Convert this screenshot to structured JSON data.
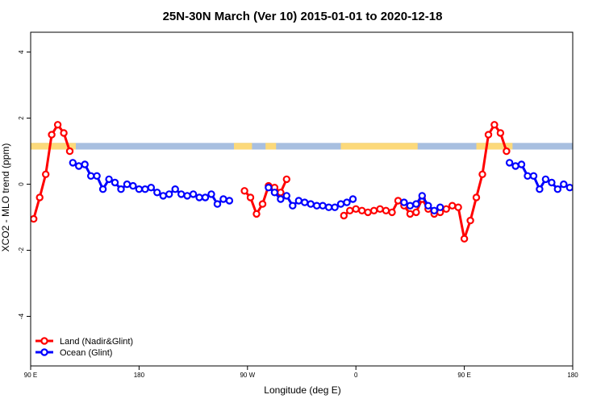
{
  "chart_data": {
    "type": "line",
    "title": "25N-30N March (Ver 10)   2015-01-01 to 2020-12-18",
    "xlabel": "Longitude (deg E)",
    "ylabel": "XCO2 - MLO trend (ppm)",
    "xlim": [
      90,
      450
    ],
    "ylim": [
      -5.5,
      4.6
    ],
    "x_ticks": [
      {
        "value": 90,
        "label": "90 E"
      },
      {
        "value": 162,
        "label": "180"
      },
      {
        "value": 234,
        "label": "90 W"
      },
      {
        "value": 306,
        "label": "0"
      },
      {
        "value": 378,
        "label": "90 E"
      },
      {
        "value": 450,
        "label": "180"
      }
    ],
    "y_ticks": [
      {
        "value": -4,
        "label": "-4"
      },
      {
        "value": -2,
        "label": "-2"
      },
      {
        "value": 0,
        "label": "0"
      },
      {
        "value": 2,
        "label": "2"
      },
      {
        "value": 4,
        "label": "4"
      }
    ],
    "grid": false,
    "legend_position": "bottom-left",
    "series": [
      {
        "name": "Land (Nadir&Glint)",
        "color": "#ff0000",
        "segments": [
          [
            [
              92,
              -1.05
            ],
            [
              96,
              -0.4
            ],
            [
              100,
              0.3
            ],
            [
              104,
              1.5
            ],
            [
              108,
              1.8
            ],
            [
              112,
              1.55
            ],
            [
              116,
              1.0
            ]
          ],
          [
            [
              232,
              -0.2
            ],
            [
              236,
              -0.4
            ],
            [
              240,
              -0.9
            ],
            [
              244,
              -0.6
            ],
            [
              248,
              -0.05
            ],
            [
              252,
              -0.1
            ],
            [
              256,
              -0.25
            ],
            [
              260,
              0.15
            ]
          ],
          [
            [
              298,
              -0.95
            ],
            [
              302,
              -0.8
            ],
            [
              306,
              -0.75
            ],
            [
              310,
              -0.8
            ],
            [
              314,
              -0.85
            ],
            [
              318,
              -0.8
            ],
            [
              322,
              -0.75
            ],
            [
              326,
              -0.8
            ],
            [
              330,
              -0.85
            ],
            [
              334,
              -0.5
            ],
            [
              338,
              -0.65
            ],
            [
              342,
              -0.9
            ],
            [
              346,
              -0.85
            ],
            [
              350,
              -0.45
            ],
            [
              354,
              -0.75
            ],
            [
              358,
              -0.9
            ],
            [
              362,
              -0.85
            ],
            [
              366,
              -0.75
            ],
            [
              370,
              -0.65
            ],
            [
              374,
              -0.7
            ],
            [
              378,
              -1.65
            ],
            [
              382,
              -1.1
            ],
            [
              386,
              -0.4
            ],
            [
              390,
              0.3
            ],
            [
              394,
              1.5
            ],
            [
              398,
              1.8
            ],
            [
              402,
              1.55
            ],
            [
              406,
              1.0
            ]
          ]
        ]
      },
      {
        "name": "Ocean (Glint)",
        "color": "#0000ff",
        "segments": [
          [
            [
              118,
              0.65
            ],
            [
              122,
              0.55
            ],
            [
              126,
              0.6
            ],
            [
              130,
              0.25
            ],
            [
              134,
              0.25
            ],
            [
              138,
              -0.15
            ],
            [
              142,
              0.15
            ],
            [
              146,
              0.05
            ],
            [
              150,
              -0.15
            ],
            [
              154,
              0.0
            ],
            [
              158,
              -0.05
            ],
            [
              162,
              -0.15
            ],
            [
              166,
              -0.15
            ],
            [
              170,
              -0.1
            ],
            [
              174,
              -0.25
            ],
            [
              178,
              -0.35
            ],
            [
              182,
              -0.3
            ],
            [
              186,
              -0.15
            ],
            [
              190,
              -0.3
            ],
            [
              194,
              -0.35
            ],
            [
              198,
              -0.3
            ],
            [
              202,
              -0.4
            ],
            [
              206,
              -0.4
            ],
            [
              210,
              -0.3
            ],
            [
              214,
              -0.6
            ],
            [
              218,
              -0.45
            ],
            [
              222,
              -0.5
            ]
          ],
          [
            [
              248,
              -0.1
            ],
            [
              252,
              -0.25
            ],
            [
              256,
              -0.45
            ],
            [
              260,
              -0.35
            ],
            [
              264,
              -0.65
            ],
            [
              268,
              -0.5
            ],
            [
              272,
              -0.55
            ],
            [
              276,
              -0.6
            ],
            [
              280,
              -0.65
            ],
            [
              284,
              -0.65
            ],
            [
              288,
              -0.7
            ],
            [
              292,
              -0.7
            ],
            [
              296,
              -0.6
            ],
            [
              300,
              -0.55
            ],
            [
              304,
              -0.45
            ]
          ],
          [
            [
              338,
              -0.55
            ],
            [
              342,
              -0.65
            ],
            [
              346,
              -0.6
            ],
            [
              350,
              -0.35
            ],
            [
              354,
              -0.65
            ],
            [
              358,
              -0.8
            ],
            [
              362,
              -0.7
            ]
          ],
          [
            [
              408,
              0.65
            ],
            [
              412,
              0.55
            ],
            [
              416,
              0.6
            ],
            [
              420,
              0.25
            ],
            [
              424,
              0.25
            ],
            [
              428,
              -0.15
            ],
            [
              432,
              0.15
            ],
            [
              436,
              0.05
            ],
            [
              440,
              -0.15
            ],
            [
              444,
              0.0
            ],
            [
              448,
              -0.1
            ],
            [
              452,
              -0.15
            ]
          ]
        ]
      }
    ],
    "band": {
      "ymin": 1.05,
      "ymax": 1.25,
      "ocean_color": "#a8bfe0",
      "land_color": "#fcd97a",
      "land_ranges": [
        [
          90,
          120
        ],
        [
          225,
          237
        ],
        [
          246,
          253
        ],
        [
          296,
          347
        ],
        [
          386,
          410
        ]
      ]
    }
  }
}
